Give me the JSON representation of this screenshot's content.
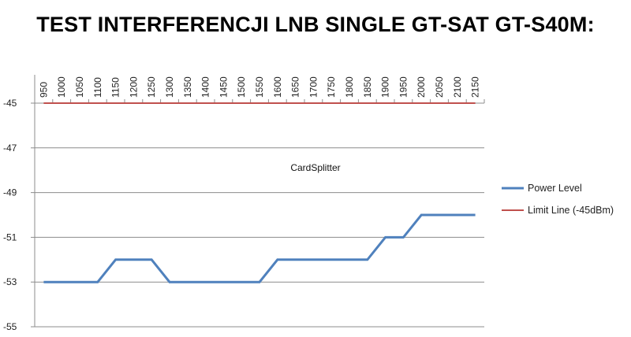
{
  "title": "TEST INTERFERENCJI LNB SINGLE GT-SAT GT-S40M:",
  "chart_data": {
    "type": "line",
    "categories": [
      "950",
      "1000",
      "1050",
      "1100",
      "1150",
      "1200",
      "1250",
      "1300",
      "1350",
      "1400",
      "1450",
      "1500",
      "1550",
      "1600",
      "1650",
      "1700",
      "1750",
      "1800",
      "1850",
      "1900",
      "1950",
      "2000",
      "2050",
      "2100",
      "2150"
    ],
    "series": [
      {
        "name": "Power Level",
        "color": "#4f81bd",
        "values": [
          -53,
          -53,
          -53,
          -53,
          -52,
          -52,
          -52,
          -53,
          -53,
          -53,
          -53,
          -53,
          -53,
          -52,
          -52,
          -52,
          -52,
          -52,
          -52,
          -51,
          -51,
          -50,
          -50,
          -50,
          -50
        ]
      },
      {
        "name": "Limit Line (-45dBm)",
        "color": "#c0504d",
        "values": [
          -45,
          -45,
          -45,
          -45,
          -45,
          -45,
          -45,
          -45,
          -45,
          -45,
          -45,
          -45,
          -45,
          -45,
          -45,
          -45,
          -45,
          -45,
          -45,
          -45,
          -45,
          -45,
          -45,
          -45,
          -45
        ]
      }
    ],
    "yticks": [
      -45,
      -47,
      -49,
      -51,
      -53,
      -55
    ],
    "ylim": [
      -55,
      -45
    ],
    "y_reversed": true,
    "x_axis_position": "top",
    "annotation": "CardSplitter",
    "legend_position": "right",
    "grid": true
  }
}
